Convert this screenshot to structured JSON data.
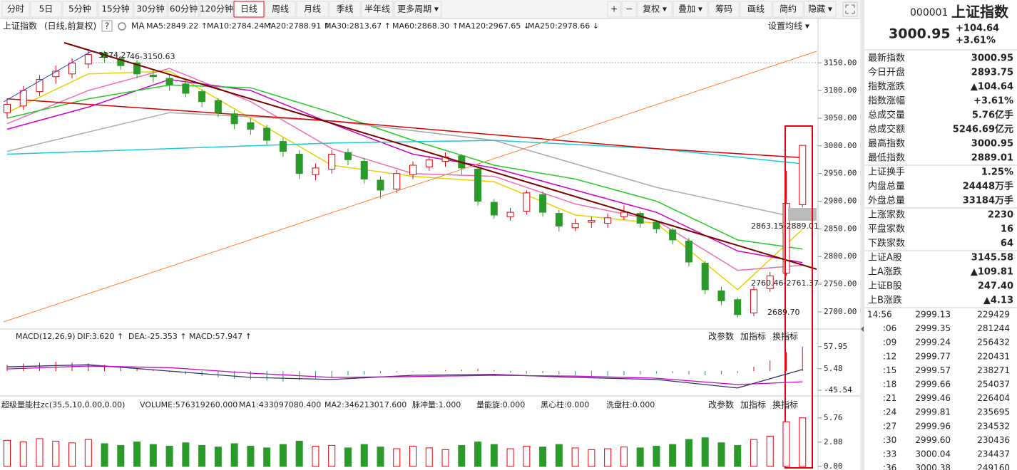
{
  "toolbar": {
    "periods": [
      "分时",
      "5日",
      "5分钟",
      "15分钟",
      "30分钟",
      "60分钟",
      "120分钟",
      "日线",
      "周线",
      "月线",
      "季线",
      "半年线",
      "更多周期 ▾"
    ],
    "active": 7,
    "tools": [
      "+",
      "−",
      "复权 ▾",
      "叠加 ▾",
      "筹码",
      "画线",
      "简约",
      "隐藏 ▾"
    ],
    "highlight": 2
  },
  "legend": {
    "title": "上证指数",
    "subtitle": "(日线,前复权)",
    "help": "?",
    "ma": "MA",
    "settings": "设置均线 ▾"
  },
  "chart_data": [
    {
      "type": "candlestick",
      "open": [
        3060,
        3072,
        3098,
        3125,
        3130,
        3148,
        3168,
        3158,
        3150,
        3128,
        3122,
        3112,
        3098,
        3082,
        3058,
        3042,
        3032,
        3008,
        2985,
        2948,
        2958,
        2988,
        2972,
        2938,
        2922,
        2948,
        2962,
        2972,
        2982,
        2958,
        2898,
        2872,
        2882,
        2912,
        2878,
        2852,
        2862,
        2860,
        2872,
        2878,
        2862,
        2848,
        2828,
        2788,
        2738,
        2722,
        2698,
        2742,
        2770,
        2893.75
      ],
      "high": [
        3085,
        3108,
        3128,
        3145,
        3158,
        3174.27,
        3172,
        3162,
        3155,
        3138,
        3130,
        3118,
        3102,
        3086,
        3065,
        3050,
        3038,
        3015,
        2992,
        2968,
        2992,
        2995,
        2978,
        2945,
        2956,
        2972,
        2982,
        2988,
        2985,
        2962,
        2904,
        2888,
        2920,
        2918,
        2884,
        2868,
        2872,
        2878,
        2892,
        2882,
        2866,
        2852,
        2834,
        2792,
        2745,
        2726,
        2746,
        2772,
        2955,
        3000.95
      ],
      "low": [
        3050,
        3065,
        3090,
        3112,
        3122,
        3140,
        3150,
        3138,
        3122,
        3115,
        3100,
        3088,
        3070,
        3052,
        3030,
        3020,
        3002,
        2980,
        2940,
        2938,
        2950,
        2965,
        2932,
        2905,
        2915,
        2940,
        2955,
        2962,
        2948,
        2892,
        2868,
        2865,
        2876,
        2872,
        2845,
        2846,
        2852,
        2852,
        2866,
        2852,
        2842,
        2822,
        2782,
        2732,
        2712,
        2689.7,
        2692,
        2736,
        2765,
        2889.01
      ],
      "close": [
        3075,
        3100,
        3120,
        3135,
        3150,
        3165,
        3160,
        3145,
        3130,
        3125,
        3110,
        3095,
        3080,
        3060,
        3040,
        3030,
        3010,
        2990,
        2950,
        2960,
        2985,
        2975,
        2940,
        2920,
        2950,
        2965,
        2975,
        2980,
        2960,
        2900,
        2875,
        2880,
        2915,
        2880,
        2855,
        2860,
        2865,
        2870,
        2880,
        2860,
        2850,
        2830,
        2790,
        2740,
        2720,
        2695,
        2740,
        2765,
        2896.31,
        3000.95
      ],
      "up_color": "#e8000b",
      "down_color": "#2a9a2a",
      "ylim": [
        2669,
        3225
      ],
      "yticks": [
        {
          "value": 3150,
          "label": "3150.00"
        },
        {
          "value": 3100,
          "label": "3100.00"
        },
        {
          "value": 3050,
          "label": "3050.00"
        },
        {
          "value": 3000,
          "label": "3000.00"
        },
        {
          "value": 2950,
          "label": "2950.00"
        },
        {
          "value": 2900,
          "label": "2900.00"
        },
        {
          "value": 2850,
          "label": "2850.00"
        },
        {
          "value": 2800,
          "label": "2800.00"
        },
        {
          "value": 2750,
          "label": "2750.00"
        },
        {
          "value": 2700,
          "label": "2700.00"
        }
      ],
      "lines": [
        {
          "label": "MA5:2849.22 ↑",
          "color": "#e6d200",
          "x": [
            0,
            5,
            10,
            15,
            20,
            25,
            30,
            35,
            40,
            45,
            49
          ],
          "values": [
            3060,
            3130,
            3135,
            3050,
            2965,
            2945,
            2935,
            2875,
            2860,
            2740,
            2849.22
          ]
        },
        {
          "label": "MA10:2784.24 ↑",
          "color": "#f06cb4",
          "x": [
            0,
            5,
            10,
            15,
            20,
            25,
            30,
            35,
            40,
            45,
            49
          ],
          "values": [
            3040,
            3100,
            3140,
            3080,
            2995,
            2950,
            2945,
            2895,
            2865,
            2775,
            2784.24
          ]
        },
        {
          "label": "MA20:2788.91 ↑",
          "color": "#cc00cc",
          "x": [
            0,
            5,
            10,
            15,
            20,
            25,
            30,
            35,
            40,
            45,
            49
          ],
          "values": [
            3030,
            3070,
            3120,
            3100,
            3040,
            2985,
            2960,
            2920,
            2880,
            2810,
            2788.91
          ]
        },
        {
          "label": "MA30:2813.67 ↑",
          "color": "#22cc22",
          "x": [
            0,
            5,
            10,
            15,
            20,
            25,
            30,
            35,
            40,
            45,
            49
          ],
          "values": [
            3050,
            3085,
            3110,
            3105,
            3060,
            3010,
            2965,
            2940,
            2900,
            2830,
            2813.67
          ]
        },
        {
          "label": "MA60:2868.30 ↑",
          "color": "#aaaaaa",
          "x": [
            0,
            10,
            20,
            30,
            40,
            49
          ],
          "values": [
            2990,
            3060,
            3045,
            3010,
            2925,
            2868.3
          ]
        },
        {
          "label": "MA120:2967.65 ↓",
          "color": "#1ec8d8",
          "x": [
            0,
            10,
            20,
            30,
            40,
            49
          ],
          "values": [
            2985,
            2995,
            3005,
            3010,
            2995,
            2967.65
          ]
        },
        {
          "label": "MA250:2978.66 ↓",
          "color": "#d40000",
          "x": [
            0,
            10,
            20,
            30,
            40,
            49
          ],
          "values": [
            3085,
            3065,
            3045,
            3020,
            2995,
            2978.66
          ]
        }
      ],
      "annotations": [
        {
          "text": "3174.27",
          "color": "#b0552a"
        },
        {
          "text": "46-3150.63",
          "color": "#333333"
        },
        {
          "text": "2863.15-2889.01",
          "color": "#333333"
        },
        {
          "text": "2760.46-2761.37",
          "color": "#333333"
        },
        {
          "text": "2689.70",
          "color": "#b0552a"
        }
      ]
    },
    {
      "type": "bar",
      "header": [
        {
          "text": "MACD(12,26,9)",
          "color": "#333333"
        },
        {
          "text": "DIF:3.620 ↑",
          "color": "#2244aa"
        },
        {
          "text": "DEA:-25.353 ↑",
          "color": "#cc00cc"
        },
        {
          "text": "MACD:57.947 ↑",
          "color": "#666666"
        }
      ],
      "buttons": [
        "改参数",
        "加指标",
        "换指标"
      ],
      "values": [
        15,
        18,
        20,
        22,
        20,
        18,
        15,
        10,
        6,
        2,
        -3,
        -8,
        -12,
        -15,
        -18,
        -20,
        -22,
        -25,
        -22,
        -18,
        -15,
        -10,
        -8,
        -5,
        -3,
        -2,
        -1,
        2,
        3,
        5,
        2,
        -3,
        -6,
        -5,
        -8,
        -10,
        -12,
        -12,
        -10,
        -8,
        -6,
        -5,
        -8,
        -10,
        -8,
        -5,
        10,
        25,
        45,
        57.95
      ],
      "up_color": "#e8000b",
      "down_color": "#1a9a5a",
      "ylim": [
        -59,
        66
      ],
      "yticks": [
        57.95,
        5.48,
        -45.54
      ],
      "lines": [
        {
          "color": "#333366",
          "x": [
            0,
            5,
            10,
            15,
            20,
            25,
            30,
            35,
            40,
            45,
            49
          ],
          "values": [
            10,
            15,
            0,
            -15,
            -20,
            -10,
            -8,
            -15,
            -20,
            -40,
            3.62
          ]
        },
        {
          "color": "#cc00cc",
          "x": [
            0,
            5,
            10,
            15,
            20,
            25,
            30,
            35,
            40,
            45,
            49
          ],
          "values": [
            5,
            12,
            8,
            -5,
            -15,
            -13,
            -10,
            -12,
            -17,
            -32,
            -25.35
          ]
        }
      ]
    },
    {
      "type": "bar",
      "header": [
        {
          "text": "超级量能柱zc(35,5,10,0.00,0.00)",
          "color": "#333333"
        },
        {
          "text": "VOLUME:576319260.000",
          "color": "#222266"
        },
        {
          "text": "MA1:433097080.400",
          "color": "#cc00cc"
        },
        {
          "text": "MA2:346213017.600",
          "color": "#888888"
        },
        {
          "text": "脉冲量:1.000",
          "color": "#e6c800"
        },
        {
          "text": "量能旋:0.000",
          "color": "#dd0000"
        },
        {
          "text": "黑心柱:0.000",
          "color": "#999999"
        },
        {
          "text": "洗盘柱:0.000",
          "color": "#cc00cc"
        }
      ],
      "buttons": [
        "改参数",
        "加指标",
        "换指标"
      ],
      "values": [
        3.1,
        2.9,
        3.3,
        3.0,
        2.8,
        3.2,
        2.7,
        2.5,
        2.9,
        2.6,
        2.4,
        2.8,
        2.5,
        2.3,
        2.7,
        2.4,
        2.2,
        2.6,
        3.0,
        2.4,
        2.5,
        2.2,
        2.6,
        2.3,
        2.1,
        2.4,
        2.2,
        2.0,
        2.5,
        2.9,
        2.6,
        2.1,
        2.4,
        2.3,
        2.6,
        2.2,
        2.0,
        2.1,
        2.3,
        2.2,
        2.4,
        2.6,
        3.2,
        3.4,
        2.8,
        2.5,
        3.2,
        3.6,
        5.3,
        5.76
      ],
      "ylim": [
        0,
        6.5
      ],
      "yticks": [
        {
          "value": 5.76,
          "label": "5.76"
        },
        {
          "value": 2.88,
          "label": "2.88"
        },
        {
          "value": 0,
          "label": "0.00"
        }
      ]
    }
  ],
  "quote": {
    "code": "000001",
    "name": "上证指数",
    "price": "3000.95",
    "change": "+104.64",
    "percent": "+3.61%",
    "rows": [
      {
        "label": "最新指数",
        "value": "3000.95",
        "color": "#e8000b"
      },
      {
        "label": "今日开盘",
        "value": "2893.75",
        "color": "#1a9a2a"
      },
      {
        "label": "指数涨跌",
        "value": "▲104.64",
        "color": "#e8000b"
      },
      {
        "label": "指数涨幅",
        "value": "+3.61%",
        "color": "#e8000b"
      },
      {
        "label": "总成交量",
        "value": "5.76亿手",
        "color": "#222222"
      },
      {
        "label": "总成交额",
        "value": "5246.69亿元",
        "color": "#1a5fb4"
      },
      {
        "label": "最高指数",
        "value": "3000.95",
        "color": "#e8000b"
      },
      {
        "label": "最低指数",
        "value": "2889.01",
        "color": "#1a9a2a"
      },
      {
        "label": "上证换手",
        "value": "1.25%",
        "color": "#222222"
      },
      {
        "label": "内盘总量",
        "value": "24448万手",
        "color": "#1a9a2a"
      },
      {
        "label": "外盘总量",
        "value": "33184万手",
        "color": "#e8000b"
      },
      {
        "label": "上涨家数",
        "value": "2230",
        "color": "#e8000b"
      },
      {
        "label": "平盘家数",
        "value": "16",
        "color": "#222222"
      },
      {
        "label": "下跌家数",
        "value": "64",
        "color": "#1a9a2a"
      },
      {
        "label": "上证A股",
        "value": "3145.58",
        "color": "#e8000b"
      },
      {
        "label": "上A涨跌",
        "value": "▲109.81",
        "color": "#e8000b"
      },
      {
        "label": "上证B股",
        "value": "247.40",
        "color": "#e8000b"
      },
      {
        "label": "上B涨跌",
        "value": "▲4.13",
        "color": "#e8000b"
      }
    ],
    "ticks": [
      [
        "14:56",
        "2999.13",
        "229429"
      ],
      [
        ":06",
        "2999.35",
        "281244"
      ],
      [
        ":09",
        "2999.24",
        "256432"
      ],
      [
        ":12",
        "2999.77",
        "220431"
      ],
      [
        ":15",
        "2999.57",
        "238271"
      ],
      [
        ":18",
        "2999.66",
        "254037"
      ],
      [
        ":21",
        "2999.46",
        "226404"
      ],
      [
        ":24",
        "2999.81",
        "235695"
      ],
      [
        ":27",
        "2999.96",
        "234532"
      ],
      [
        ":30",
        "2999.60",
        "230436"
      ],
      [
        ":33",
        "3000.04",
        "234437"
      ],
      [
        ":36",
        "3000.38",
        "249160"
      ]
    ],
    "tick_colors": [
      "#1a9a2a",
      "#e8000b",
      "#1a9a2a",
      "#e8000b",
      "#1a9a2a",
      "#e8000b",
      "#1a9a2a",
      "#e8000b",
      "#1a9a2a",
      "#1a9a2a",
      "#e8000b",
      "#1a9a2a"
    ]
  }
}
